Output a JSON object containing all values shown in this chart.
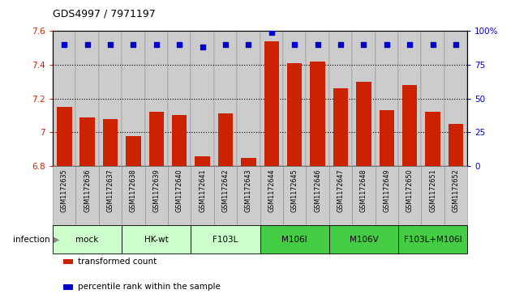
{
  "title": "GDS4997 / 7971197",
  "samples": [
    "GSM1172635",
    "GSM1172636",
    "GSM1172637",
    "GSM1172638",
    "GSM1172639",
    "GSM1172640",
    "GSM1172641",
    "GSM1172642",
    "GSM1172643",
    "GSM1172644",
    "GSM1172645",
    "GSM1172646",
    "GSM1172647",
    "GSM1172648",
    "GSM1172649",
    "GSM1172650",
    "GSM1172651",
    "GSM1172652"
  ],
  "bar_values": [
    7.15,
    7.09,
    7.08,
    6.98,
    7.12,
    7.1,
    6.86,
    7.11,
    6.85,
    7.54,
    7.41,
    7.42,
    7.26,
    7.3,
    7.13,
    7.28,
    7.12,
    7.05
  ],
  "percentile_values": [
    90,
    90,
    90,
    90,
    90,
    90,
    88,
    90,
    90,
    99,
    90,
    90,
    90,
    90,
    90,
    90,
    90,
    90
  ],
  "bar_color": "#cc2200",
  "dot_color": "#0000cc",
  "ylim_left": [
    6.8,
    7.6
  ],
  "ylim_right": [
    0,
    100
  ],
  "yticks_left": [
    6.8,
    7.0,
    7.2,
    7.4,
    7.6
  ],
  "ytick_labels_left": [
    "6.8",
    "7",
    "7.2",
    "7.4",
    "7.6"
  ],
  "yticks_right": [
    0,
    25,
    50,
    75,
    100
  ],
  "ytick_labels_right": [
    "0",
    "25",
    "50",
    "75",
    "100%"
  ],
  "grid_values": [
    7.0,
    7.2,
    7.4
  ],
  "groups": [
    {
      "label": "mock",
      "start": 0,
      "end": 2,
      "color": "#ccffcc"
    },
    {
      "label": "HK-wt",
      "start": 3,
      "end": 5,
      "color": "#ccffcc"
    },
    {
      "label": "F103L",
      "start": 6,
      "end": 8,
      "color": "#ccffcc"
    },
    {
      "label": "M106I",
      "start": 9,
      "end": 11,
      "color": "#44cc44"
    },
    {
      "label": "M106V",
      "start": 12,
      "end": 14,
      "color": "#44cc44"
    },
    {
      "label": "F103L+M106I",
      "start": 15,
      "end": 17,
      "color": "#44cc44"
    }
  ],
  "infection_label": "infection",
  "legend_bar_label": "transformed count",
  "legend_dot_label": "percentile rank within the sample",
  "sample_box_color": "#cccccc",
  "sample_box_edge": "#888888"
}
